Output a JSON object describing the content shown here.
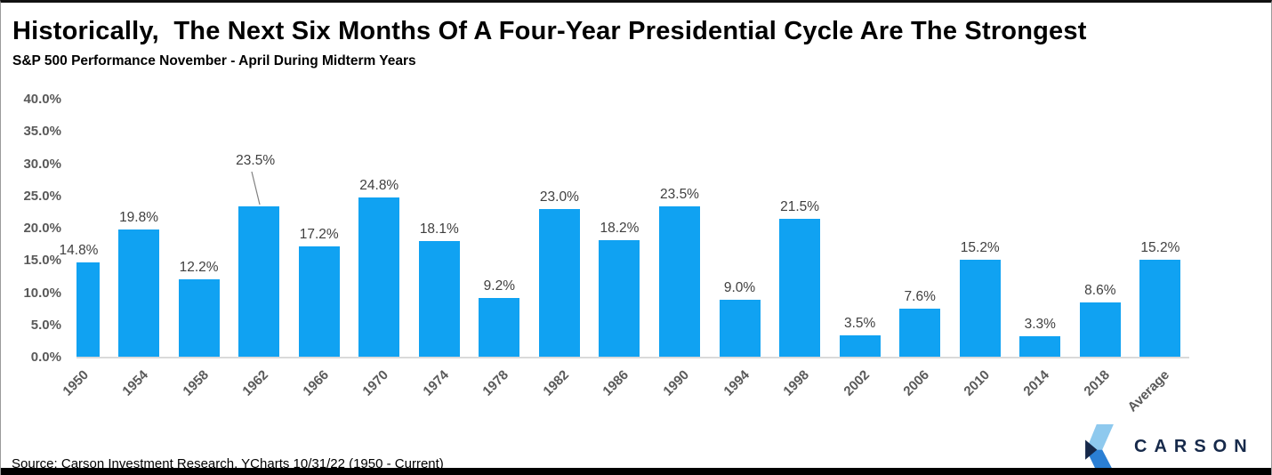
{
  "title": "Historically,  The Next Six Months Of A Four-Year Presidential Cycle Are The Strongest",
  "subtitle": "S&P 500 Performance November - April During Midterm Years",
  "source": "Source: Carson Investment Research, YCharts 10/31/22 (1950 - Current)",
  "logo": {
    "wordmark": "CARSON"
  },
  "colors": {
    "bar": "#10a2f2",
    "axis_label": "#595959",
    "value_label": "#3f3f3f",
    "baseline": "#dadada",
    "leader_line": "#808080",
    "logo_navy": "#16294a",
    "logo_light_blue": "#8ec9ee",
    "logo_mid_blue": "#2b7fd4"
  },
  "chart_data": {
    "type": "bar",
    "title": "Historically, The Next Six Months Of A Four-Year Presidential Cycle Are The Strongest",
    "subtitle": "S&P 500 Performance November - April During Midterm Years",
    "categories": [
      "1950",
      "1954",
      "1958",
      "1962",
      "1966",
      "1970",
      "1974",
      "1978",
      "1982",
      "1986",
      "1990",
      "1994",
      "1998",
      "2002",
      "2006",
      "2010",
      "2014",
      "2018",
      "Average"
    ],
    "values": [
      14.8,
      19.8,
      12.2,
      23.5,
      17.2,
      24.8,
      18.1,
      9.2,
      23.0,
      18.2,
      23.5,
      9.0,
      21.5,
      3.5,
      7.6,
      15.2,
      3.3,
      8.6,
      15.2
    ],
    "value_labels": [
      "14.8%",
      "19.8%",
      "12.2%",
      "23.5%",
      "17.2%",
      "24.8%",
      "18.1%",
      "9.2%",
      "23.0%",
      "18.2%",
      "23.5%",
      "9.0%",
      "21.5%",
      "3.5%",
      "7.6%",
      "15.2%",
      "3.3%",
      "8.6%",
      "15.2%"
    ],
    "yticks": [
      "0.0%",
      "5.0%",
      "10.0%",
      "15.0%",
      "20.0%",
      "25.0%",
      "30.0%",
      "35.0%",
      "40.0%"
    ],
    "ylim": [
      0,
      40
    ],
    "ytick_step": 5,
    "xlabel": "",
    "ylabel": "",
    "grid": false,
    "legend": false,
    "x_label_rotation_deg": 45,
    "annotation": {
      "category": "1962",
      "style": "leader-line-offset-label"
    }
  }
}
